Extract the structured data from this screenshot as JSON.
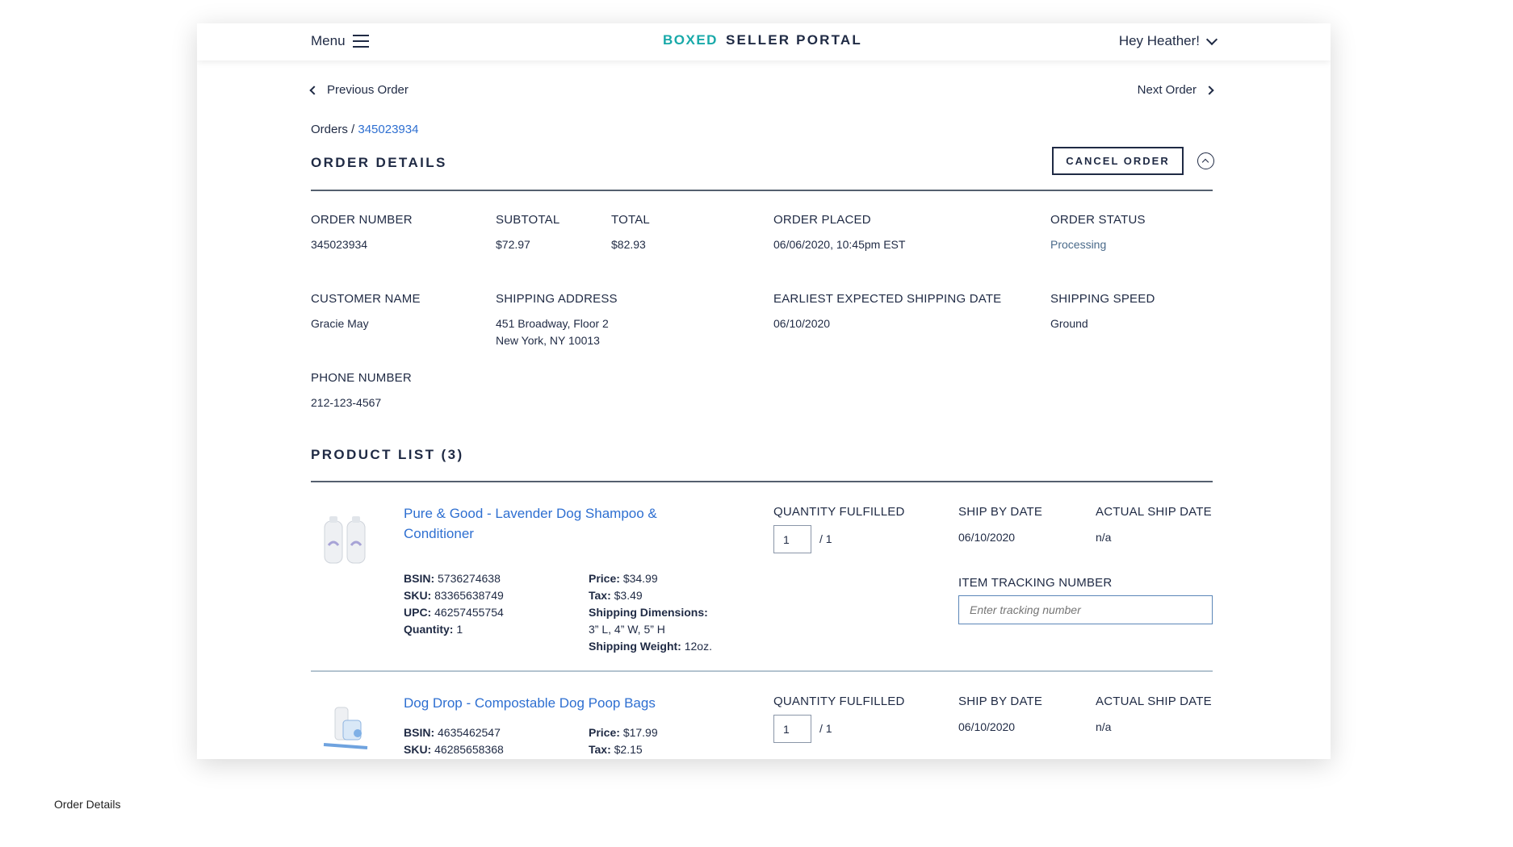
{
  "header": {
    "menu_label": "Menu",
    "brand_logo": "BOXED",
    "brand_title": "SELLER PORTAL",
    "greeting": "Hey Heather!"
  },
  "nav": {
    "previous": "Previous Order",
    "next": "Next Order"
  },
  "breadcrumb": {
    "root": "Orders",
    "separator": " / ",
    "current": "345023934"
  },
  "order": {
    "title": "ORDER DETAILS",
    "cancel_label": "CANCEL ORDER",
    "fields": {
      "order_number": {
        "label": "ORDER NUMBER",
        "value": "345023934"
      },
      "subtotal": {
        "label": "SUBTOTAL",
        "value": "$72.97"
      },
      "total": {
        "label": "TOTAL",
        "value": "$82.93"
      },
      "placed": {
        "label": "ORDER PLACED",
        "value": "06/06/2020, 10:45pm EST"
      },
      "status": {
        "label": "ORDER STATUS",
        "value": "Processing"
      },
      "customer": {
        "label": "CUSTOMER NAME",
        "value": "Gracie May"
      },
      "address": {
        "label": "SHIPPING ADDRESS",
        "line1": "451 Broadway, Floor 2",
        "line2": "New York, NY 10013"
      },
      "ship_date": {
        "label": "EARLIEST EXPECTED SHIPPING DATE",
        "value": "06/10/2020"
      },
      "speed": {
        "label": "SHIPPING SPEED",
        "value": "Ground"
      },
      "phone": {
        "label": "PHONE NUMBER",
        "value": "212-123-4567"
      }
    }
  },
  "product_list": {
    "title": "PRODUCT LIST (3)",
    "columns": {
      "qty": "QUANTITY FULFILLED",
      "ship_by": "SHIP BY DATE",
      "actual": "ACTUAL SHIP DATE",
      "tracking": "ITEM TRACKING NUMBER"
    },
    "labels": {
      "bsin": "BSIN:",
      "sku": "SKU:",
      "upc": "UPC:",
      "quantity": "Quantity:",
      "price": "Price:",
      "tax": "Tax:",
      "dims": "Shipping Dimensions:",
      "weight": "Shipping Weight:"
    },
    "tracking_placeholder": "Enter tracking number",
    "items": [
      {
        "name": "Pure & Good - Lavender Dog Shampoo & Conditioner",
        "bsin": "5736274638",
        "sku": "83365638749",
        "upc": "46257455754",
        "quantity": "1",
        "price": "$34.99",
        "tax": "$3.49",
        "dims": "3” L, 4” W, 5” H",
        "weight": "12oz.",
        "qty_value": "1",
        "qty_total": "/ 1",
        "ship_by": "06/10/2020",
        "actual": "n/a"
      },
      {
        "name": "Dog Drop - Compostable Dog Poop Bags",
        "bsin": "4635462547",
        "sku": "46285658368",
        "price": "$17.99",
        "tax": "$2.15",
        "qty_value": "1",
        "qty_total": "/ 1",
        "ship_by": "06/10/2020",
        "actual": "n/a"
      }
    ]
  },
  "caption": "Order Details"
}
